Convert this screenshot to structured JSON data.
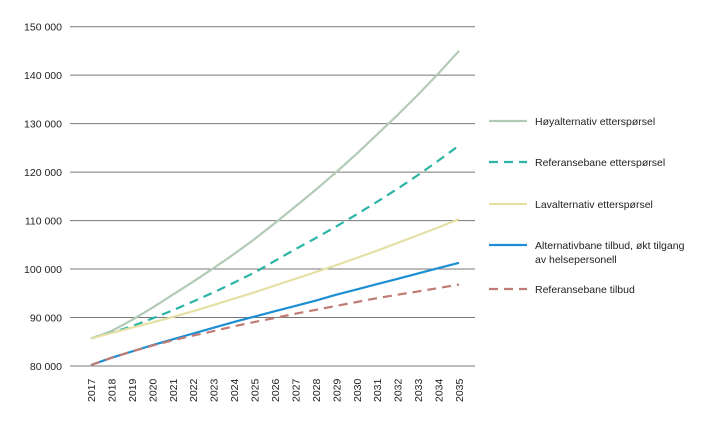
{
  "chart_data": {
    "type": "line",
    "title": "",
    "xlabel": "",
    "ylabel": "",
    "ylim": [
      80000,
      150000
    ],
    "yticks": [
      "80 000",
      "90 000",
      "100 000",
      "110 000",
      "120 000",
      "130 000",
      "140 000",
      "150 000"
    ],
    "ytick_values": [
      80000,
      90000,
      100000,
      110000,
      120000,
      130000,
      140000,
      150000
    ],
    "grid": "horizontal",
    "legend_position": "right",
    "x": [
      "2017",
      "2018",
      "2019",
      "2020",
      "2021",
      "2022",
      "2023",
      "2024",
      "2025",
      "2026",
      "2027",
      "2028",
      "2029",
      "2030",
      "2031",
      "2032",
      "2033",
      "2034",
      "2035"
    ],
    "series": [
      {
        "name": "Høyalternativ etterspørsel",
        "color": "#b3cbb6",
        "dash": false,
        "values": [
          85700,
          87200,
          89500,
          92000,
          94700,
          97400,
          100200,
          103100,
          106200,
          109500,
          112900,
          116400,
          120000,
          123800,
          127800,
          131800,
          136000,
          140400,
          145000
        ]
      },
      {
        "name": "Referansebane etterspørsel",
        "color": "#2cb5a6",
        "dash": true,
        "values": [
          85700,
          86900,
          88200,
          89800,
          91500,
          93300,
          95200,
          97200,
          99300,
          101700,
          104100,
          106400,
          108800,
          111300,
          113900,
          116600,
          119400,
          122400,
          125500
        ]
      },
      {
        "name": "Lavalternativ etterspørsel",
        "color": "#e6dfa6",
        "dash": false,
        "values": [
          85700,
          86800,
          87900,
          89000,
          90100,
          91300,
          92600,
          93900,
          95200,
          96600,
          98000,
          99400,
          100800,
          102300,
          103800,
          105400,
          107000,
          108600,
          110300
        ]
      },
      {
        "name": "Alternativbane tilbud, økt tilgang av helsepersonell",
        "name_lines": [
          "Alternativbane tilbud, økt tilgang",
          "av helsepersonell"
        ],
        "color": "#1b8fd2",
        "dash": false,
        "values": [
          80200,
          81700,
          83000,
          84300,
          85500,
          86700,
          87900,
          89100,
          90200,
          91300,
          92400,
          93500,
          94700,
          95800,
          96900,
          98000,
          99100,
          100200,
          101300
        ]
      },
      {
        "name": "Referansebane tilbud",
        "color": "#c07b75",
        "dash": true,
        "values": [
          80200,
          81700,
          83000,
          84200,
          85300,
          86300,
          87200,
          88200,
          89100,
          89900,
          90800,
          91600,
          92400,
          93200,
          94000,
          94700,
          95400,
          96100,
          96800
        ]
      }
    ]
  }
}
